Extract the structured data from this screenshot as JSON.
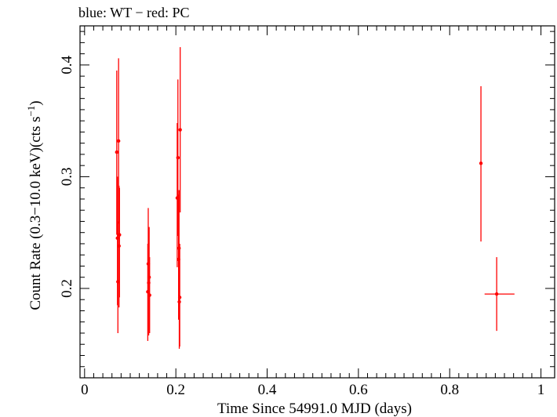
{
  "chart_data": {
    "type": "scatter",
    "title": "blue: WT − red: PC",
    "xlabel": "Time Since 54991.0 MJD (days)",
    "ylabel_main": "Count Rate (0.3−10.0 keV)(cts s",
    "ylabel_sup": "−1",
    "ylabel_tail": ")",
    "xlim": [
      -0.01,
      1.03
    ],
    "ylim": [
      0.12,
      0.435
    ],
    "xticks": [
      0,
      0.2,
      0.4,
      0.6,
      0.8,
      1
    ],
    "xtick_labels": [
      "0",
      "0.2",
      "0.4",
      "0.6",
      "0.8",
      "1"
    ],
    "yticks": [
      0.2,
      0.3,
      0.4
    ],
    "ytick_labels": [
      "0.2",
      "0.3",
      "0.4"
    ],
    "grid": false,
    "series": [
      {
        "color": "#ff0000",
        "points": [
          {
            "x": 0.0705,
            "y": 0.322,
            "ylo": 0.248,
            "yhi": 0.395
          },
          {
            "x": 0.072,
            "y": 0.245,
            "ylo": 0.185,
            "yhi": 0.3
          },
          {
            "x": 0.073,
            "y": 0.206,
            "ylo": 0.16,
            "yhi": 0.26
          },
          {
            "x": 0.0745,
            "y": 0.332,
            "ylo": 0.258,
            "yhi": 0.406
          },
          {
            "x": 0.0755,
            "y": 0.238,
            "ylo": 0.183,
            "yhi": 0.292
          },
          {
            "x": 0.0765,
            "y": 0.248,
            "ylo": 0.192,
            "yhi": 0.29
          },
          {
            "x": 0.1385,
            "y": 0.197,
            "ylo": 0.153,
            "yhi": 0.24
          },
          {
            "x": 0.1395,
            "y": 0.222,
            "ylo": 0.172,
            "yhi": 0.272
          },
          {
            "x": 0.1405,
            "y": 0.205,
            "ylo": 0.158,
            "yhi": 0.25
          },
          {
            "x": 0.1415,
            "y": 0.21,
            "ylo": 0.163,
            "yhi": 0.255
          },
          {
            "x": 0.1425,
            "y": 0.194,
            "ylo": 0.16,
            "yhi": 0.228
          },
          {
            "x": 0.203,
            "y": 0.281,
            "ylo": 0.219,
            "yhi": 0.348
          },
          {
            "x": 0.2045,
            "y": 0.317,
            "ylo": 0.247,
            "yhi": 0.387
          },
          {
            "x": 0.206,
            "y": 0.226,
            "ylo": 0.172,
            "yhi": 0.284
          },
          {
            "x": 0.207,
            "y": 0.236,
            "ylo": 0.18,
            "yhi": 0.288
          },
          {
            "x": 0.2075,
            "y": 0.188,
            "ylo": 0.146,
            "yhi": 0.232
          },
          {
            "x": 0.2085,
            "y": 0.192,
            "ylo": 0.148,
            "yhi": 0.24
          },
          {
            "x": 0.2095,
            "y": 0.342,
            "ylo": 0.268,
            "yhi": 0.416
          },
          {
            "x": 0.8685,
            "y": 0.312,
            "ylo": 0.242,
            "yhi": 0.381
          },
          {
            "x": 0.903,
            "y": 0.195,
            "ylo": 0.162,
            "yhi": 0.228,
            "xlo": 0.8765,
            "xhi": 0.942
          }
        ]
      }
    ]
  }
}
